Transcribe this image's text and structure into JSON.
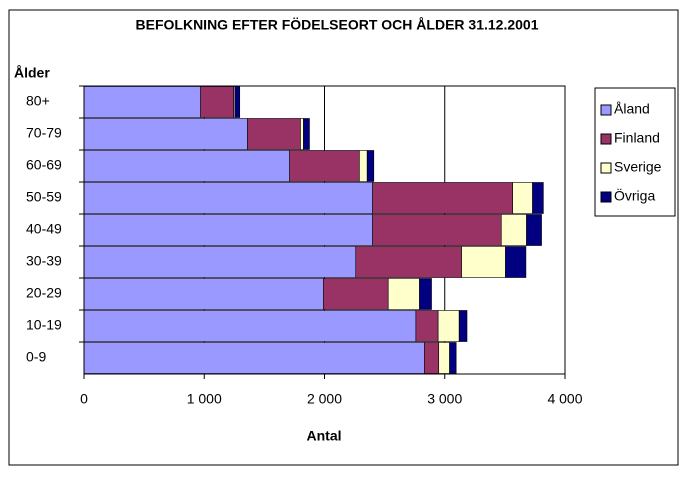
{
  "chart_data": {
    "type": "stacked_barh",
    "title": "BEFOLKNING EFTER FÖDELSEORT OCH ÅLDER 31.12.2001",
    "y_label": "Ålder",
    "x_label": "Antal",
    "categories": [
      "80+",
      "70-79",
      "60-69",
      "50-59",
      "40-49",
      "30-39",
      "20-29",
      "10-19",
      "0-9"
    ],
    "series": [
      {
        "name": "Åland",
        "color": "#9999ff",
        "values": [
          970,
          1360,
          1710,
          2400,
          2400,
          2260,
          1990,
          2760,
          2830
        ]
      },
      {
        "name": "Finland",
        "color": "#993366",
        "values": [
          275,
          440,
          580,
          1165,
          1070,
          880,
          540,
          185,
          120
        ]
      },
      {
        "name": "Sverige",
        "color": "#ffffcc",
        "values": [
          10,
          25,
          65,
          165,
          210,
          365,
          260,
          175,
          90
        ]
      },
      {
        "name": "Övriga",
        "color": "#000080",
        "values": [
          40,
          50,
          55,
          90,
          125,
          170,
          100,
          65,
          55
        ]
      }
    ],
    "xlim": [
      0,
      4000
    ],
    "xticks": [
      0,
      {
        "value": 1000,
        "label": "1 000"
      },
      {
        "value": 2000,
        "label": "2 000"
      },
      {
        "value": 3000,
        "label": "3 000"
      },
      {
        "value": 4000,
        "label": "4 000"
      }
    ],
    "grid": true,
    "legend": "right"
  }
}
